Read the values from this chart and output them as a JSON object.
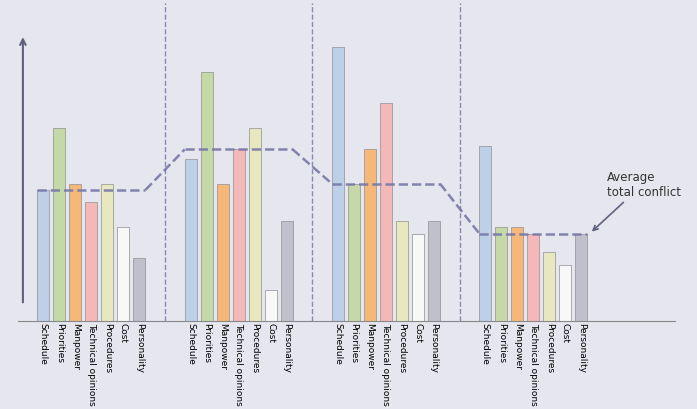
{
  "categories": [
    "Schedule",
    "Priorities",
    "Manpower",
    "Technical opinions",
    "Procedures",
    "Cost",
    "Personality"
  ],
  "bar_colors": [
    "#bdd0e8",
    "#c5d9a8",
    "#f5b878",
    "#f5b8b8",
    "#e8e8c0",
    "#f8f8f8",
    "#c0c0cc"
  ],
  "bar_edge_color": "#909090",
  "groups": {
    "g1": [
      0.42,
      0.62,
      0.44,
      0.38,
      0.44,
      0.3,
      0.2
    ],
    "g2": [
      0.52,
      0.8,
      0.44,
      0.55,
      0.62,
      0.1,
      0.32
    ],
    "g3": [
      0.88,
      0.44,
      0.55,
      0.7,
      0.32,
      0.28,
      0.32
    ],
    "g4": [
      0.56,
      0.3,
      0.3,
      0.28,
      0.22,
      0.18,
      0.28
    ]
  },
  "avg_levels": [
    0.42,
    0.55,
    0.44,
    0.28
  ],
  "dashed_line_color": "#7878a8",
  "background_color": "#e6e6ee",
  "arrow_color": "#606080",
  "annotation": "Average\ntotal conflict",
  "annotation_fontsize": 8.5,
  "bar_width": 0.75
}
